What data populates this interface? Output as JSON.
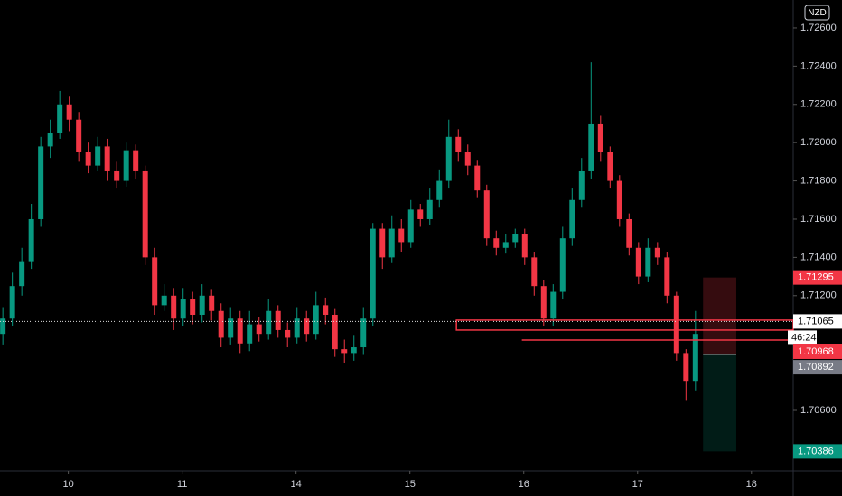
{
  "chart_data": {
    "type": "candlestick",
    "currency": "NZD",
    "up_color": "#089981",
    "down_color": "#f23645",
    "x": [
      0,
      1,
      2,
      3,
      4,
      5,
      6,
      7,
      8,
      9,
      10,
      11,
      12,
      13,
      14,
      15,
      16,
      17,
      18,
      19,
      20,
      21,
      22,
      23,
      24,
      25,
      26,
      27,
      28,
      29,
      30,
      31,
      32,
      33,
      34,
      35,
      36,
      37,
      38,
      39,
      40,
      41,
      42,
      43,
      44,
      45,
      46,
      47,
      48,
      49,
      50,
      51,
      52,
      53,
      54,
      55,
      56,
      57,
      58,
      59,
      60,
      61,
      62,
      63,
      64,
      65,
      66,
      67,
      68,
      69,
      70,
      71,
      72,
      73
    ],
    "opens": [
      1.71,
      1.7108,
      1.7125,
      1.7138,
      1.716,
      1.7198,
      1.7205,
      1.722,
      1.7212,
      1.7195,
      1.7188,
      1.7198,
      1.7185,
      1.718,
      1.7196,
      1.7185,
      1.714,
      1.7115,
      1.712,
      1.7108,
      1.7118,
      1.711,
      1.712,
      1.7112,
      1.7098,
      1.7108,
      1.7095,
      1.7105,
      1.71,
      1.7112,
      1.7102,
      1.7098,
      1.7108,
      1.71,
      1.7115,
      1.711,
      1.7092,
      1.709,
      1.7093,
      1.7108,
      1.7155,
      1.714,
      1.7155,
      1.7148,
      1.7165,
      1.716,
      1.717,
      1.718,
      1.7203,
      1.7195,
      1.7188,
      1.7175,
      1.715,
      1.7145,
      1.7148,
      1.7152,
      1.714,
      1.7125,
      1.7108,
      1.7122,
      1.715,
      1.717,
      1.7185,
      1.721,
      1.7195,
      1.718,
      1.716,
      1.7145,
      1.713,
      1.7145,
      1.714,
      1.712,
      1.709,
      1.7075
    ],
    "highs": [
      1.7114,
      1.7132,
      1.7145,
      1.7168,
      1.7203,
      1.7212,
      1.7227,
      1.7224,
      1.7216,
      1.72,
      1.7203,
      1.7202,
      1.719,
      1.72,
      1.7199,
      1.7188,
      1.7145,
      1.7126,
      1.7124,
      1.7124,
      1.7122,
      1.7126,
      1.7123,
      1.7116,
      1.7114,
      1.7112,
      1.7112,
      1.7109,
      1.7118,
      1.7115,
      1.7106,
      1.7114,
      1.7112,
      1.7122,
      1.7119,
      1.7113,
      1.7097,
      1.7099,
      1.7114,
      1.7158,
      1.7158,
      1.7162,
      1.716,
      1.717,
      1.7168,
      1.7176,
      1.7186,
      1.7212,
      1.7207,
      1.7199,
      1.7191,
      1.7178,
      1.7154,
      1.7152,
      1.7155,
      1.7155,
      1.7143,
      1.7128,
      1.7126,
      1.7156,
      1.7176,
      1.7192,
      1.7242,
      1.7214,
      1.7198,
      1.7183,
      1.7163,
      1.7148,
      1.715,
      1.7148,
      1.7143,
      1.7122,
      1.7092,
      1.7112
    ],
    "lows": [
      1.7094,
      1.7104,
      1.712,
      1.7134,
      1.7156,
      1.7192,
      1.7202,
      1.7206,
      1.719,
      1.7184,
      1.7185,
      1.718,
      1.7176,
      1.7177,
      1.7181,
      1.7136,
      1.711,
      1.7112,
      1.7102,
      1.7104,
      1.7105,
      1.7106,
      1.7107,
      1.7093,
      1.7094,
      1.709,
      1.7091,
      1.7096,
      1.7097,
      1.7098,
      1.7093,
      1.7095,
      1.7096,
      1.7097,
      1.7105,
      1.7088,
      1.7085,
      1.7086,
      1.7089,
      1.7104,
      1.7134,
      1.7137,
      1.7143,
      1.7145,
      1.7156,
      1.7157,
      1.7166,
      1.7176,
      1.719,
      1.7183,
      1.7171,
      1.7146,
      1.7141,
      1.7142,
      1.7145,
      1.7136,
      1.712,
      1.7104,
      1.7104,
      1.7118,
      1.7146,
      1.7166,
      1.7181,
      1.719,
      1.7176,
      1.7156,
      1.7141,
      1.7126,
      1.7127,
      1.7136,
      1.7116,
      1.7086,
      1.7065,
      1.707
    ],
    "closes": [
      1.7108,
      1.7125,
      1.7138,
      1.716,
      1.7198,
      1.7205,
      1.722,
      1.7212,
      1.7195,
      1.7188,
      1.7198,
      1.7185,
      1.718,
      1.7196,
      1.7185,
      1.714,
      1.7115,
      1.712,
      1.7108,
      1.7118,
      1.711,
      1.712,
      1.7112,
      1.7098,
      1.7108,
      1.7095,
      1.7105,
      1.71,
      1.7112,
      1.7102,
      1.7098,
      1.7108,
      1.71,
      1.7115,
      1.711,
      1.7092,
      1.709,
      1.7093,
      1.7108,
      1.7155,
      1.714,
      1.7155,
      1.7148,
      1.7165,
      1.716,
      1.717,
      1.718,
      1.7203,
      1.7195,
      1.7188,
      1.7175,
      1.715,
      1.7145,
      1.7148,
      1.7152,
      1.714,
      1.7125,
      1.7108,
      1.7122,
      1.715,
      1.717,
      1.7185,
      1.721,
      1.7195,
      1.718,
      1.716,
      1.7145,
      1.713,
      1.7145,
      1.714,
      1.712,
      1.709,
      1.7075,
      1.71
    ],
    "xlim": [
      -0.3,
      83.3
    ],
    "xticks": [
      {
        "value": 6.9,
        "label": "10"
      },
      {
        "value": 18.9,
        "label": "11"
      },
      {
        "value": 30.9,
        "label": "14"
      },
      {
        "value": 42.9,
        "label": "15"
      },
      {
        "value": 54.9,
        "label": "16"
      },
      {
        "value": 66.9,
        "label": "17"
      },
      {
        "value": 78.9,
        "label": "18"
      }
    ],
    "ylim": [
      1.70284,
      1.72746
    ],
    "yticks": [
      {
        "value": 1.726,
        "label": "1.72600"
      },
      {
        "value": 1.724,
        "label": "1.72400"
      },
      {
        "value": 1.722,
        "label": "1.72200"
      },
      {
        "value": 1.72,
        "label": "1.72000"
      },
      {
        "value": 1.718,
        "label": "1.71800"
      },
      {
        "value": 1.716,
        "label": "1.71600"
      },
      {
        "value": 1.714,
        "label": "1.71400"
      },
      {
        "value": 1.712,
        "label": "1.71200"
      },
      {
        "value": 1.706,
        "label": "1.70600"
      }
    ],
    "current_price": 1.71065,
    "countdown": "46:24",
    "zone": {
      "ylim": [
        1.7102,
        1.71072
      ],
      "x_start": 47.8
    },
    "ray": {
      "value": 1.70968,
      "x_start": 54.7
    },
    "position": {
      "stop": 1.71295,
      "entry": 1.70892,
      "target": 1.70386,
      "xrange": [
        73.8,
        77.3
      ]
    }
  }
}
